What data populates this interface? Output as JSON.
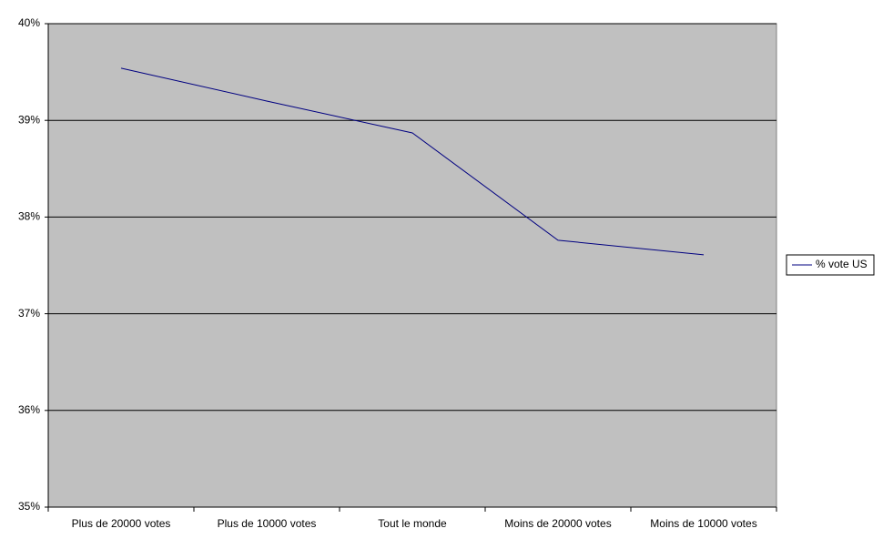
{
  "chart_data": {
    "type": "line",
    "categories": [
      "Plus de 20000 votes",
      "Plus de 10000 votes",
      "Tout le monde",
      "Moins de 20000 votes",
      "Moins de 10000 votes"
    ],
    "series": [
      {
        "name": "% vote US",
        "color": "#000080",
        "values": [
          39.54,
          39.2,
          38.87,
          37.76,
          37.61
        ]
      }
    ],
    "ylim": [
      35,
      40
    ],
    "yticks": [
      {
        "value": 35,
        "label": "35%"
      },
      {
        "value": 36,
        "label": "36%"
      },
      {
        "value": 37,
        "label": "37%"
      },
      {
        "value": 38,
        "label": "38%"
      },
      {
        "value": 39,
        "label": "39%"
      },
      {
        "value": 40,
        "label": "40%"
      }
    ],
    "grid": true,
    "legend": "right",
    "background": "#c0c0c0"
  }
}
